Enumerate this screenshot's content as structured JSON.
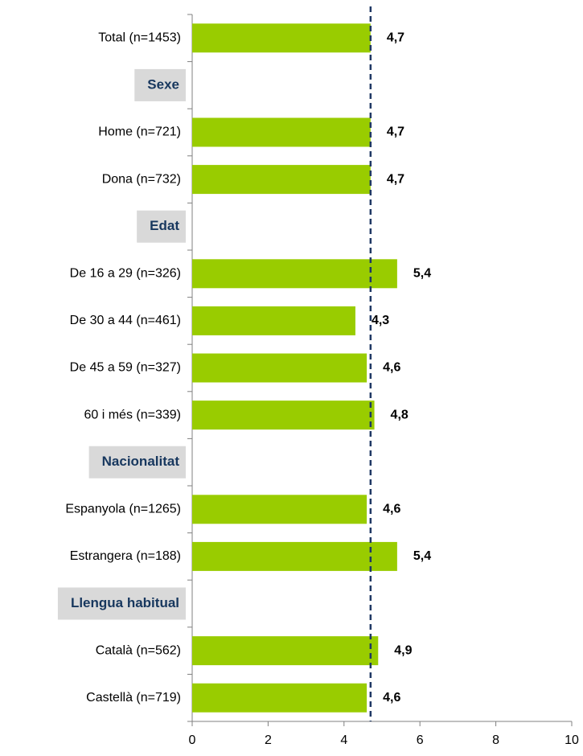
{
  "chart_data": {
    "type": "bar",
    "orientation": "horizontal",
    "categories": [
      "Total (n=1453)",
      "Sexe",
      "Home (n=721)",
      "Dona (n=732)",
      "Edat",
      "De 16 a 29 (n=326)",
      "De 30 a 44 (n=461)",
      "De 45 a 59 (n=327)",
      "60 i més (n=339)",
      "Nacionalitat",
      "Espanyola (n=1265)",
      "Estrangera (n=188)",
      "Llengua habitual",
      "Català (n=562)",
      "Castellà (n=719)"
    ],
    "values": [
      4.7,
      null,
      4.7,
      4.7,
      null,
      5.4,
      4.3,
      4.6,
      4.8,
      null,
      4.6,
      5.4,
      null,
      4.9,
      4.6
    ],
    "value_labels": [
      "4,7",
      null,
      "4,7",
      "4,7",
      null,
      "5,4",
      "4,3",
      "4,6",
      "4,8",
      null,
      "4,6",
      "5,4",
      null,
      "4,9",
      "4,6"
    ],
    "color": "#99cc00",
    "reference_line": 4.7,
    "reference_color": "#1f3864",
    "header_color": "#d9d9d9",
    "header_text_color": "#17375e",
    "xlim": [
      0,
      10
    ],
    "xticks": [
      0,
      2,
      4,
      6,
      8,
      10
    ],
    "grid": false
  }
}
